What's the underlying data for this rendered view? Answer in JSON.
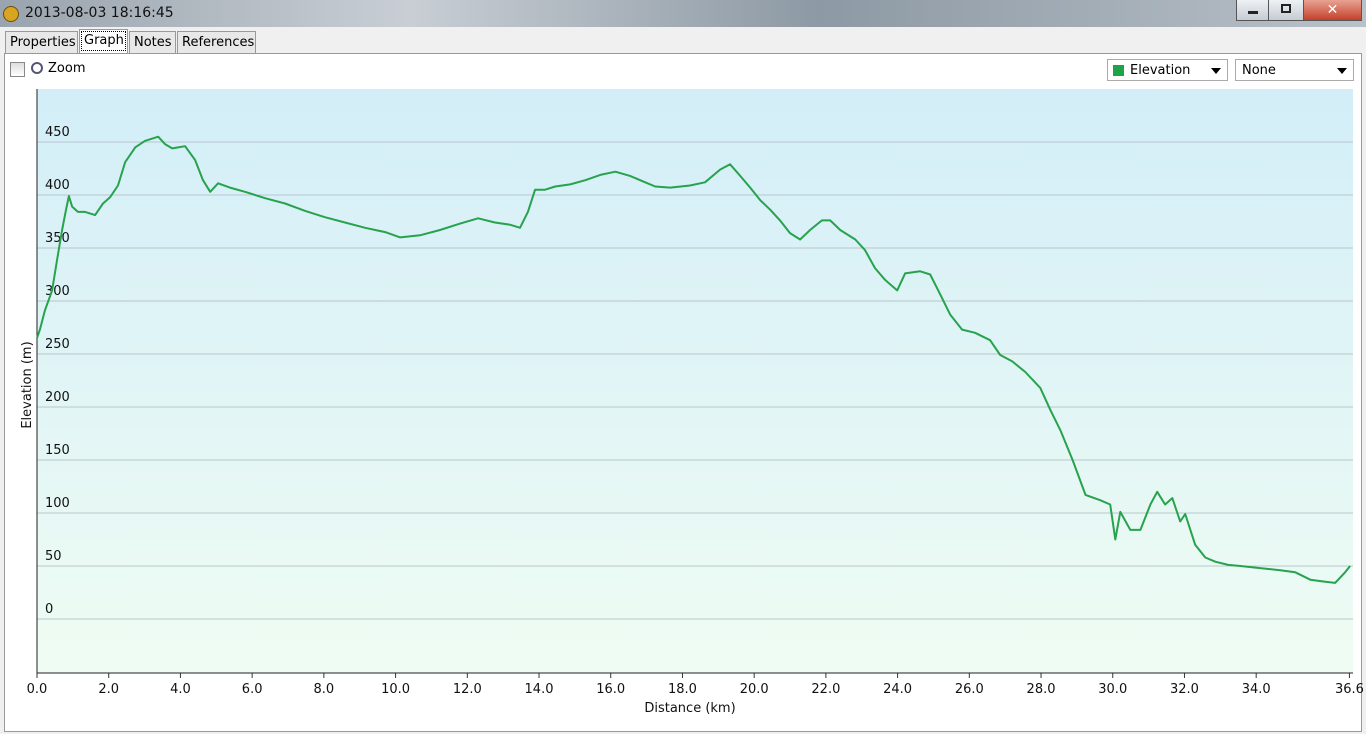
{
  "window": {
    "title": "2013-08-03 18:16:45"
  },
  "tabs": [
    "Properties",
    "Graph",
    "Notes",
    "References"
  ],
  "toolbar": {
    "zoom": "Zoom",
    "primary": "Elevation",
    "secondary": "None"
  },
  "chart_data": {
    "type": "line",
    "x_label": "Distance (km)",
    "y_label": "Elevation (m)",
    "color": "#27a24d",
    "grid": true,
    "xlim": [
      0,
      36.7
    ],
    "ylim": [
      -51,
      500
    ],
    "xticks": [
      {
        "value": 0,
        "label": "0.0"
      },
      {
        "value": 2,
        "label": "2.0"
      },
      {
        "value": 4,
        "label": "4.0"
      },
      {
        "value": 6,
        "label": "6.0"
      },
      {
        "value": 8,
        "label": "8.0"
      },
      {
        "value": 10,
        "label": "10.0"
      },
      {
        "value": 12,
        "label": "12.0"
      },
      {
        "value": 14,
        "label": "14.0"
      },
      {
        "value": 16,
        "label": "16.0"
      },
      {
        "value": 18,
        "label": "18.0"
      },
      {
        "value": 20,
        "label": "20.0"
      },
      {
        "value": 22,
        "label": "22.0"
      },
      {
        "value": 24,
        "label": "24.0"
      },
      {
        "value": 26,
        "label": "26.0"
      },
      {
        "value": 28,
        "label": "28.0"
      },
      {
        "value": 30,
        "label": "30.0"
      },
      {
        "value": 32,
        "label": "32.0"
      },
      {
        "value": 34,
        "label": "34.0"
      },
      {
        "value": 36.6,
        "label": "36.6"
      }
    ],
    "yticks": [
      0,
      50,
      100,
      150,
      200,
      250,
      300,
      350,
      400,
      450
    ],
    "x": [
      0,
      0.08,
      0.22,
      0.42,
      0.56,
      0.7,
      0.81,
      0.89,
      0.98,
      1.14,
      1.34,
      1.62,
      1.84,
      2.04,
      2.26,
      2.46,
      2.74,
      3.01,
      3.38,
      3.57,
      3.77,
      4.13,
      4.41,
      4.63,
      4.83,
      5.05,
      5.38,
      5.8,
      6.36,
      6.92,
      7.48,
      8.03,
      8.59,
      9.15,
      9.71,
      10.13,
      10.68,
      11.24,
      11.8,
      12.3,
      12.77,
      13.19,
      13.47,
      13.69,
      13.89,
      14.17,
      14.45,
      14.87,
      15.29,
      15.71,
      16.13,
      16.54,
      16.96,
      17.24,
      17.66,
      18.21,
      18.63,
      19.05,
      19.33,
      19.61,
      19.89,
      20.17,
      20.45,
      20.72,
      21.0,
      21.28,
      21.56,
      21.89,
      22.12,
      22.4,
      22.82,
      23.09,
      23.37,
      23.65,
      23.99,
      24.21,
      24.63,
      24.91,
      25.19,
      25.47,
      25.8,
      26.16,
      26.58,
      26.86,
      27.2,
      27.56,
      27.98,
      28.26,
      28.54,
      28.88,
      29.24,
      29.65,
      29.93,
      30.07,
      30.21,
      30.49,
      30.77,
      31.05,
      31.24,
      31.46,
      31.66,
      31.88,
      32.02,
      32.3,
      32.58,
      32.86,
      33.22,
      33.56,
      34.11,
      34.67,
      35.09,
      35.51,
      35.93,
      36.2,
      36.48,
      36.62
    ],
    "values": [
      265,
      273,
      291,
      310,
      339,
      367,
      386,
      399,
      389,
      384,
      384,
      381,
      392,
      398,
      409,
      431,
      445,
      451,
      455,
      448,
      444,
      446,
      433,
      414,
      403,
      411,
      407,
      403,
      397,
      392,
      385,
      379,
      374,
      369,
      365,
      360,
      362,
      367,
      373,
      378,
      374,
      372,
      369,
      384,
      405,
      405,
      408,
      410,
      414,
      419,
      422,
      418,
      412,
      408,
      407,
      409,
      412,
      424,
      429,
      418,
      407,
      395,
      386,
      376,
      364,
      358,
      367,
      376,
      376,
      367,
      358,
      348,
      331,
      320,
      310,
      326,
      328,
      325,
      306,
      287,
      273,
      270,
      263,
      249,
      243,
      233,
      218,
      197,
      178,
      150,
      117,
      112,
      108,
      75,
      101,
      84,
      84,
      108,
      120,
      108,
      114,
      92,
      99,
      70,
      58,
      54,
      51,
      50,
      48,
      46,
      44,
      37,
      35,
      34,
      44,
      50
    ]
  }
}
